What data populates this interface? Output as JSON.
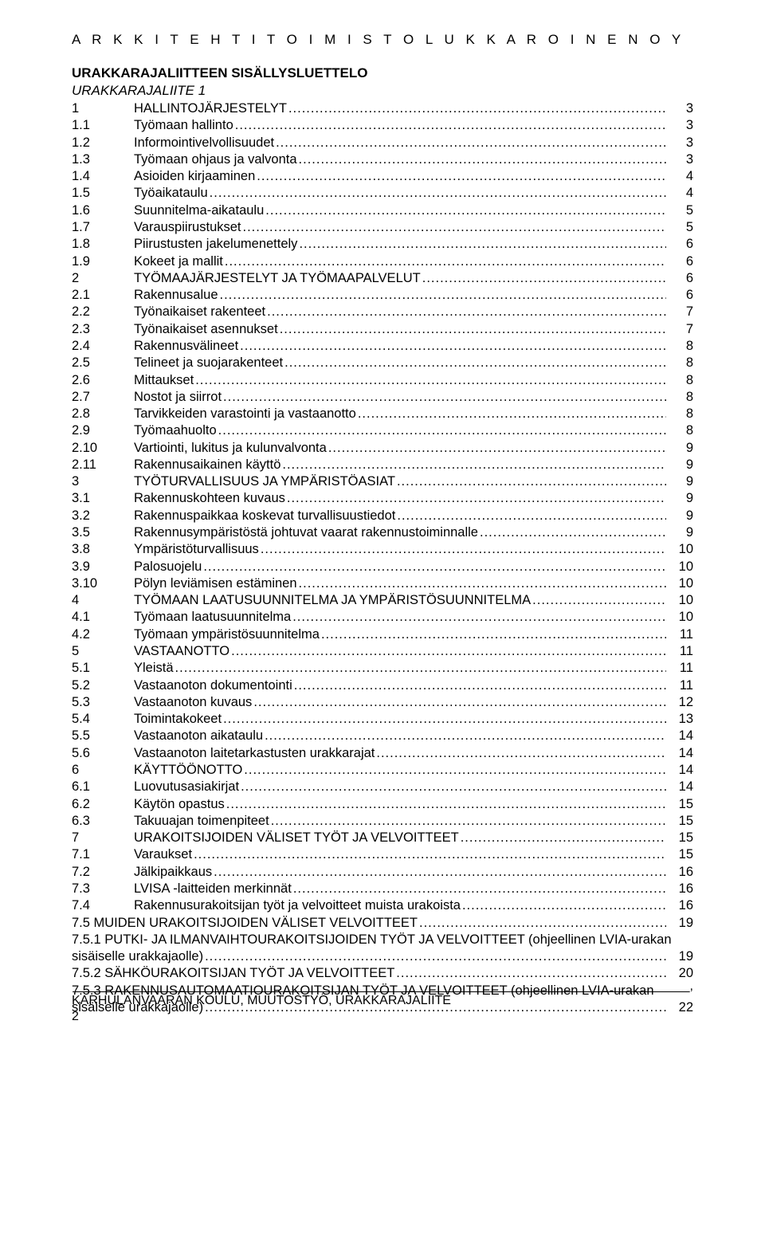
{
  "header": "A R K K I T E H T I T O I M I S T O   L U K K A R O I N E N   O Y",
  "title": "URAKKARAJALIITTEEN SISÄLLYSLUETTELO",
  "subtitle": "URAKKARAJALIITE     1",
  "toc": [
    {
      "n": "1",
      "t": "HALLINTOJÄRJESTELYT",
      "p": "3"
    },
    {
      "n": "1.1",
      "t": "Työmaan hallinto",
      "p": "3"
    },
    {
      "n": "1.2",
      "t": "Informointivelvollisuudet",
      "p": "3"
    },
    {
      "n": "1.3",
      "t": "Työmaan ohjaus ja valvonta",
      "p": "3"
    },
    {
      "n": "1.4",
      "t": "Asioiden kirjaaminen",
      "p": "4"
    },
    {
      "n": "1.5",
      "t": "Työaikataulu",
      "p": "4"
    },
    {
      "n": "1.6",
      "t": "Suunnitelma-aikataulu",
      "p": "5"
    },
    {
      "n": "1.7",
      "t": "Varauspiirustukset",
      "p": "5"
    },
    {
      "n": "1.8",
      "t": "Piirustusten jakelumenettely",
      "p": "6"
    },
    {
      "n": "1.9",
      "t": "Kokeet ja mallit",
      "p": "6"
    },
    {
      "n": "2",
      "t": "TYÖMAAJÄRJESTELYT JA TYÖMAAPALVELUT",
      "p": "6"
    },
    {
      "n": "2.1",
      "t": "Rakennusalue",
      "p": "6"
    },
    {
      "n": "2.2",
      "t": "Työnaikaiset rakenteet",
      "p": "7"
    },
    {
      "n": "2.3",
      "t": "Työnaikaiset asennukset",
      "p": "7"
    },
    {
      "n": "2.4",
      "t": "Rakennusvälineet",
      "p": "8"
    },
    {
      "n": "2.5",
      "t": "Telineet ja suojarakenteet",
      "p": "8"
    },
    {
      "n": "2.6",
      "t": "Mittaukset",
      "p": "8"
    },
    {
      "n": "2.7",
      "t": "Nostot ja siirrot",
      "p": "8"
    },
    {
      "n": "2.8",
      "t": "Tarvikkeiden varastointi ja vastaanotto",
      "p": "8"
    },
    {
      "n": "2.9",
      "t": "Työmaahuolto",
      "p": "8"
    },
    {
      "n": "2.10",
      "t": "Vartiointi, lukitus ja kulunvalvonta",
      "p": "9"
    },
    {
      "n": "2.11",
      "t": "Rakennusaikainen käyttö",
      "p": "9"
    },
    {
      "n": "3",
      "t": "TYÖTURVALLISUUS JA YMPÄRISTÖASIAT",
      "p": "9"
    },
    {
      "n": "3.1",
      "t": "Rakennuskohteen kuvaus",
      "p": "9"
    },
    {
      "n": "3.2",
      "t": "Rakennuspaikkaa koskevat turvallisuustiedot",
      "p": "9"
    },
    {
      "n": "3.5",
      "t": "Rakennusympäristöstä johtuvat vaarat rakennustoiminnalle",
      "p": "9"
    },
    {
      "n": "3.8",
      "t": "Ympäristöturvallisuus",
      "p": "10"
    },
    {
      "n": "3.9",
      "t": "Palosuojelu",
      "p": "10"
    },
    {
      "n": "3.10",
      "t": "Pölyn leviämisen estäminen",
      "p": "10"
    },
    {
      "n": "4",
      "t": "TYÖMAAN LAATUSUUNNITELMA JA YMPÄRISTÖSUUNNITELMA",
      "p": "10"
    },
    {
      "n": "4.1",
      "t": "Työmaan laatusuunnitelma",
      "p": "10"
    },
    {
      "n": "4.2",
      "t": "Työmaan ympäristösuunnitelma",
      "p": "11"
    },
    {
      "n": "5",
      "t": "VASTAANOTTO",
      "p": "11"
    },
    {
      "n": "5.1",
      "t": "Yleistä",
      "p": "11"
    },
    {
      "n": "5.2",
      "t": "Vastaanoton dokumentointi",
      "p": "11"
    },
    {
      "n": "5.3",
      "t": "Vastaanoton kuvaus",
      "p": "12"
    },
    {
      "n": "5.4",
      "t": "Toimintakokeet",
      "p": "13"
    },
    {
      "n": "5.5",
      "t": "Vastaanoton aikataulu",
      "p": "14"
    },
    {
      "n": "5.6",
      "t": "Vastaanoton laitetarkastusten urakkarajat",
      "p": "14"
    },
    {
      "n": "6",
      "t": "KÄYTTÖÖNOTTO",
      "p": "14"
    },
    {
      "n": "6.1",
      "t": "Luovutusasiakirjat",
      "p": "14"
    },
    {
      "n": "6.2",
      "t": "Käytön opastus",
      "p": "15"
    },
    {
      "n": "6.3",
      "t": "Takuuajan toimenpiteet",
      "p": "15"
    },
    {
      "n": "7",
      "t": "URAKOITSIJOIDEN  VÄLISET  TYÖT JA VELVOITTEET",
      "p": "15"
    },
    {
      "n": "7.1",
      "t": "Varaukset",
      "p": "15"
    },
    {
      "n": "7.2",
      "t": "Jälkipaikkaus",
      "p": "16"
    },
    {
      "n": "7.3",
      "t": "LVISA -laitteiden merkinnät",
      "p": "16"
    },
    {
      "n": "7.4",
      "t": "Rakennusurakoitsijan työt ja velvoitteet muista urakoista",
      "p": "16"
    },
    {
      "n": "",
      "t": "7.5 MUIDEN URAKOITSIJOIDEN VÄLISET VELVOITTEET",
      "p": "19",
      "tight": true
    },
    {
      "n": "",
      "t": "7.5.1 PUTKI- JA ILMANVAIHTOURAKOITSIJOIDEN TYÖT JA VELVOITTEET (ohjeellinen LVIA-urakan sisäiselle urakkajaolle)",
      "p": "19",
      "wrap": true
    },
    {
      "n": "",
      "t": "7.5.2 SÄHKÖURAKOITSIJAN TYÖT JA VELVOITTEET",
      "p": "20",
      "tight": true
    },
    {
      "n": "",
      "t": "7.5.3 RAKENNUSAUTOMAATIOURAKOITSIJAN TYÖT JA VELVOITTEET (ohjeellinen LVIA-urakan sisäiselle urakkajaolle)",
      "p": "22",
      "wrap": true
    }
  ],
  "footer_dash": "_______________________________________________________________________________________,",
  "footer_text": "KARHULANVAARAN KOULU, MUUTOSTYÖ, URAKKARAJALIITE",
  "footer_page": "2"
}
